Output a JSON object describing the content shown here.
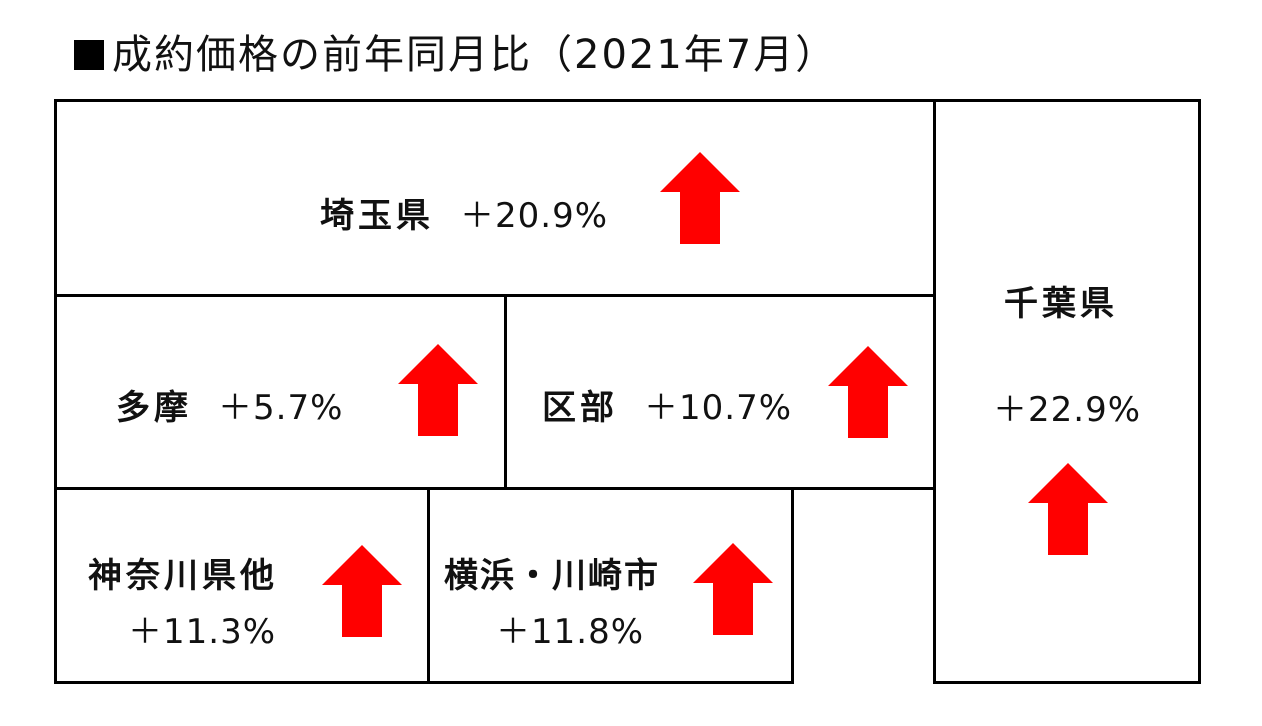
{
  "title": "成約価格の前年同月比（2021年7月）",
  "colors": {
    "arrow": "#ff0000",
    "border": "#000000"
  },
  "regions": {
    "saitama": {
      "name": "埼玉県",
      "change": "＋20.9%",
      "direction": "up"
    },
    "tama": {
      "name": "多摩",
      "change": "＋5.7%",
      "direction": "up"
    },
    "kubu": {
      "name": "区部",
      "change": "＋10.7%",
      "direction": "up"
    },
    "chiba": {
      "name": "千葉県",
      "change": "＋22.9%",
      "direction": "up"
    },
    "kanagawa": {
      "name": "神奈川県他",
      "change": "＋11.3%",
      "direction": "up"
    },
    "yokohama": {
      "name": "横浜・川崎市",
      "change": "＋11.8%",
      "direction": "up"
    }
  }
}
